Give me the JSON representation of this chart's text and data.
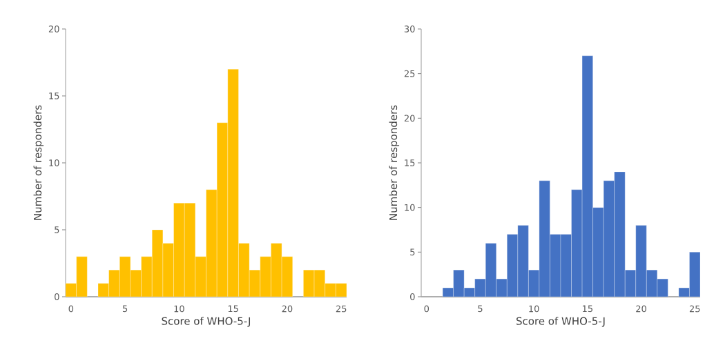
{
  "chart_data": [
    {
      "type": "histogram",
      "xlabel": "Score of WHO-5-J",
      "ylabel": "Number of responders",
      "color": "#ffc000",
      "bins": [
        -0.5,
        0.5,
        1.5,
        2.5,
        3.5,
        4.5,
        5.5,
        6.5,
        7.5,
        8.5,
        9.5,
        10.5,
        11.5,
        12.5,
        13.5,
        14.5,
        15.5,
        16.5,
        17.5,
        18.5,
        19.5,
        20.5,
        21.5,
        22.5,
        23.5,
        24.5,
        25.5
      ],
      "values": [
        1,
        3,
        0,
        1,
        2,
        3,
        2,
        3,
        5,
        4,
        7,
        7,
        3,
        8,
        13,
        17,
        4,
        2,
        3,
        4,
        3,
        0,
        2,
        2,
        1,
        1
      ],
      "xlim": [
        -0.5,
        25.5
      ],
      "xticks": [
        0,
        5,
        10,
        15,
        20,
        25
      ],
      "ylim": [
        0,
        20
      ],
      "yticks": [
        0,
        5,
        10,
        15,
        20
      ]
    },
    {
      "type": "histogram",
      "xlabel": "Score of WHO-5-J",
      "ylabel": "Number of responders",
      "color": "#4472c4",
      "bins": [
        -0.5,
        0.5,
        1.5,
        2.5,
        3.5,
        4.5,
        5.5,
        6.5,
        7.5,
        8.5,
        9.5,
        10.5,
        11.5,
        12.5,
        13.5,
        14.5,
        15.5,
        16.5,
        17.5,
        18.5,
        19.5,
        20.5,
        21.5,
        22.5,
        23.5,
        24.5,
        25.5
      ],
      "values": [
        0,
        0,
        1,
        3,
        1,
        2,
        6,
        2,
        7,
        8,
        3,
        13,
        7,
        7,
        12,
        27,
        10,
        13,
        14,
        3,
        8,
        3,
        2,
        0,
        1,
        5
      ],
      "xlim": [
        -0.5,
        25.5
      ],
      "xticks": [
        0,
        5,
        10,
        15,
        20,
        25
      ],
      "ylim": [
        0,
        30
      ],
      "yticks": [
        0,
        5,
        10,
        15,
        20,
        25,
        30
      ]
    }
  ]
}
